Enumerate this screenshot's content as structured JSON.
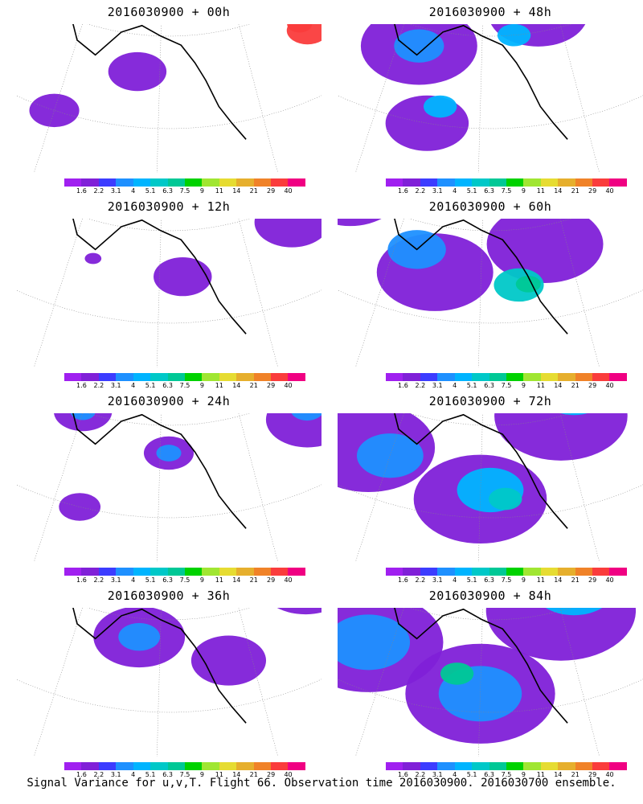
{
  "panels": [
    {
      "title": "2016030900 + 00h",
      "lead_hours": 0,
      "blobs": [
        {
          "lat": 56,
          "lon": 215,
          "r": 3.5,
          "level": 1
        },
        {
          "lat": 50,
          "lon": 200,
          "r": 3.0,
          "level": 1
        },
        {
          "lat": 57,
          "lon": 255,
          "r": 2.5,
          "level": 12
        },
        {
          "lat": 58,
          "lon": 254,
          "r": 1.5,
          "level": 12
        },
        {
          "lat": 72,
          "lon": 180,
          "r": 0.8,
          "level": 1
        }
      ]
    },
    {
      "title": "2016030900 + 48h",
      "lead_hours": 48,
      "blobs": [
        {
          "lat": 62,
          "lon": 180,
          "r": 5.0,
          "level": 1
        },
        {
          "lat": 58,
          "lon": 205,
          "r": 7.0,
          "level": 1
        },
        {
          "lat": 50,
          "lon": 210,
          "r": 5.0,
          "level": 1
        },
        {
          "lat": 62,
          "lon": 235,
          "r": 6.0,
          "level": 1
        },
        {
          "lat": 65,
          "lon": 260,
          "r": 6.0,
          "level": 1
        },
        {
          "lat": 75,
          "lon": 270,
          "r": 3.0,
          "level": 1
        },
        {
          "lat": 58,
          "lon": 205,
          "r": 3.0,
          "level": 3
        },
        {
          "lat": 64,
          "lon": 260,
          "r": 3.0,
          "level": 3
        },
        {
          "lat": 60,
          "lon": 228,
          "r": 2.0,
          "level": 4
        },
        {
          "lat": 52,
          "lon": 212,
          "r": 2.0,
          "level": 4
        }
      ]
    },
    {
      "title": "2016030900 + 12h",
      "lead_hours": 12,
      "blobs": [
        {
          "lat": 63,
          "lon": 195,
          "r": 2.0,
          "level": 1
        },
        {
          "lat": 55,
          "lon": 225,
          "r": 3.5,
          "level": 1
        },
        {
          "lat": 58,
          "lon": 252,
          "r": 4.5,
          "level": 1
        },
        {
          "lat": 60,
          "lon": 253,
          "r": 2.5,
          "level": 2
        },
        {
          "lat": 56,
          "lon": 205,
          "r": 1.0,
          "level": 1
        }
      ]
    },
    {
      "title": "2016030900 + 60h",
      "lead_hours": 60,
      "blobs": [
        {
          "lat": 60,
          "lon": 185,
          "r": 6.0,
          "level": 1
        },
        {
          "lat": 55,
          "lon": 210,
          "r": 7.0,
          "level": 1
        },
        {
          "lat": 58,
          "lon": 235,
          "r": 7.0,
          "level": 1
        },
        {
          "lat": 65,
          "lon": 262,
          "r": 8.0,
          "level": 1
        },
        {
          "lat": 75,
          "lon": 245,
          "r": 4.0,
          "level": 1
        },
        {
          "lat": 57,
          "lon": 205,
          "r": 3.5,
          "level": 3
        },
        {
          "lat": 54,
          "lon": 228,
          "r": 3.0,
          "level": 5
        },
        {
          "lat": 62,
          "lon": 258,
          "r": 3.0,
          "level": 4
        },
        {
          "lat": 54,
          "lon": 230,
          "r": 1.5,
          "level": 6
        },
        {
          "lat": 77,
          "lon": 275,
          "r": 2.0,
          "level": 5
        }
      ]
    },
    {
      "title": "2016030900 + 24h",
      "lead_hours": 24,
      "blobs": [
        {
          "lat": 60,
          "lon": 200,
          "r": 3.5,
          "level": 1
        },
        {
          "lat": 57,
          "lon": 222,
          "r": 3.0,
          "level": 1
        },
        {
          "lat": 57,
          "lon": 255,
          "r": 5.0,
          "level": 1
        },
        {
          "lat": 50,
          "lon": 205,
          "r": 2.5,
          "level": 1
        },
        {
          "lat": 60,
          "lon": 200,
          "r": 1.5,
          "level": 3
        },
        {
          "lat": 57,
          "lon": 222,
          "r": 1.5,
          "level": 3
        },
        {
          "lat": 58,
          "lon": 256,
          "r": 2.0,
          "level": 3
        }
      ]
    },
    {
      "title": "2016030900 + 72h",
      "lead_hours": 72,
      "blobs": [
        {
          "lat": 62,
          "lon": 170,
          "r": 7.0,
          "level": 1
        },
        {
          "lat": 55,
          "lon": 195,
          "r": 8.0,
          "level": 1
        },
        {
          "lat": 52,
          "lon": 220,
          "r": 8.0,
          "level": 1
        },
        {
          "lat": 60,
          "lon": 240,
          "r": 8.0,
          "level": 1
        },
        {
          "lat": 66,
          "lon": 265,
          "r": 9.0,
          "level": 1
        },
        {
          "lat": 75,
          "lon": 180,
          "r": 3.0,
          "level": 1
        },
        {
          "lat": 55,
          "lon": 200,
          "r": 4.0,
          "level": 3
        },
        {
          "lat": 53,
          "lon": 222,
          "r": 4.0,
          "level": 4
        },
        {
          "lat": 62,
          "lon": 245,
          "r": 4.0,
          "level": 4
        },
        {
          "lat": 66,
          "lon": 265,
          "r": 4.0,
          "level": 4
        },
        {
          "lat": 52,
          "lon": 225,
          "r": 2.0,
          "level": 5
        },
        {
          "lat": 78,
          "lon": 275,
          "r": 2.5,
          "level": 6
        }
      ]
    },
    {
      "title": "2016030900 + 36h",
      "lead_hours": 36,
      "blobs": [
        {
          "lat": 62,
          "lon": 195,
          "r": 3.5,
          "level": 1
        },
        {
          "lat": 58,
          "lon": 215,
          "r": 5.5,
          "level": 1
        },
        {
          "lat": 55,
          "lon": 235,
          "r": 4.5,
          "level": 1
        },
        {
          "lat": 60,
          "lon": 258,
          "r": 5.5,
          "level": 1
        },
        {
          "lat": 58,
          "lon": 215,
          "r": 2.5,
          "level": 3
        },
        {
          "lat": 62,
          "lon": 180,
          "r": 1.5,
          "level": 1
        },
        {
          "lat": 62,
          "lon": 180,
          "r": 0.8,
          "level": 3
        },
        {
          "lat": 60,
          "lon": 258,
          "r": 2.5,
          "level": 3
        }
      ]
    },
    {
      "title": "2016030900 + 84h",
      "lead_hours": 84,
      "blobs": [
        {
          "lat": 62,
          "lon": 170,
          "r": 8.0,
          "level": 1
        },
        {
          "lat": 55,
          "lon": 195,
          "r": 9.0,
          "level": 1
        },
        {
          "lat": 52,
          "lon": 220,
          "r": 9.0,
          "level": 1
        },
        {
          "lat": 60,
          "lon": 240,
          "r": 9.0,
          "level": 1
        },
        {
          "lat": 68,
          "lon": 265,
          "r": 10.0,
          "level": 1
        },
        {
          "lat": 78,
          "lon": 220,
          "r": 6.0,
          "level": 1
        },
        {
          "lat": 55,
          "lon": 195,
          "r": 5.0,
          "level": 3
        },
        {
          "lat": 52,
          "lon": 220,
          "r": 5.0,
          "level": 3
        },
        {
          "lat": 62,
          "lon": 245,
          "r": 5.0,
          "level": 4
        },
        {
          "lat": 70,
          "lon": 268,
          "r": 5.0,
          "level": 5
        },
        {
          "lat": 54,
          "lon": 215,
          "r": 2.0,
          "level": 6
        },
        {
          "lat": 70,
          "lon": 270,
          "r": 2.0,
          "level": 6
        }
      ]
    }
  ],
  "colorbar": {
    "colors": [
      "#a020f0",
      "#8020d8",
      "#3c3cff",
      "#1e90ff",
      "#00b4ff",
      "#00c8c8",
      "#00c896",
      "#00d200",
      "#a0e632",
      "#e6dc32",
      "#e6af2d",
      "#f08228",
      "#fa3c3c",
      "#f00082"
    ],
    "labels": [
      "1.6",
      "2.2",
      "3.1",
      "4",
      "5.1",
      "6.3",
      "7.5",
      "9",
      "11",
      "14",
      "21",
      "29",
      "40"
    ]
  },
  "footer": "Signal Variance for u,v,T. Flight 66. Observation time 2016030900. 2016030700 ensemble."
}
